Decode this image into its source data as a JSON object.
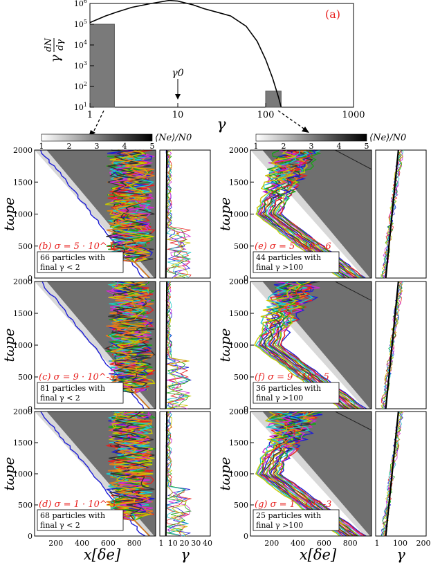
{
  "colors": {
    "accent_red": "#e8201e",
    "curve": "#000000",
    "band_dark": "#4d4d4d",
    "track_colors": [
      "#1d1dd6",
      "#e8201e",
      "#19a319",
      "#d12ad1",
      "#21c8c8",
      "#c8c800",
      "#333333",
      "#e87a1a"
    ]
  },
  "chart_data": [
    {
      "type": "line",
      "panel": "(a)",
      "xscale": "log",
      "yscale": "log",
      "xlim": [
        1,
        1000
      ],
      "ylim": [
        10,
        1000000
      ],
      "xlabel": "γ",
      "ylabel": "γ dN/dγ",
      "xticks": [
        "1",
        "10",
        "100",
        "1000"
      ],
      "yticks": [
        "10^1",
        "10^2",
        "10^3",
        "10^4",
        "10^5",
        "10^6"
      ],
      "annotation": "γ0",
      "annotation_x": 9,
      "series": [
        {
          "x": [
            1,
            1.5,
            2,
            3,
            5,
            8,
            10,
            15,
            20,
            30,
            40,
            60,
            80,
            100,
            120,
            140,
            150
          ],
          "y": [
            120000,
            250000,
            380000,
            650000,
            1000000,
            1400000,
            1300000,
            850000,
            560000,
            350000,
            250000,
            80000,
            15000,
            2000,
            250,
            30,
            10
          ]
        }
      ],
      "shaded_bins": [
        {
          "xrange": [
            1,
            1.9
          ],
          "top": 100000
        },
        {
          "xrange": [
            100,
            150
          ],
          "top": 60
        }
      ]
    },
    {
      "type": "heatmap",
      "panel": "(b)",
      "title": "σ = 5 · 10^-6",
      "note_line1": "66 particles with",
      "note_line2": "final γ < 2",
      "xlabel": "x[δe]",
      "ylabel": "tωpe",
      "xticks": [
        "200",
        "400",
        "600",
        "800"
      ],
      "yticks": [
        "0",
        "500",
        "1000",
        "1500",
        "2000"
      ],
      "colorbar": {
        "label": "⟨Ne⟩/N0",
        "ticks": [
          "1",
          "2",
          "3",
          "4",
          "5"
        ],
        "range": [
          1,
          5
        ]
      },
      "side_xticks": [
        "1",
        "10",
        "20",
        "30",
        "40"
      ],
      "side_xlabel": "γ"
    },
    {
      "type": "heatmap",
      "panel": "(c)",
      "title": "σ = 9 · 10^-5",
      "note_line1": "81 particles with",
      "note_line2": "final γ < 2",
      "xlabel": "x[δe]",
      "ylabel": "tωpe",
      "xticks": [
        "200",
        "400",
        "600",
        "800"
      ],
      "yticks": [
        "0",
        "500",
        "1000",
        "1500",
        "2000"
      ]
    },
    {
      "type": "heatmap",
      "panel": "(d)",
      "title": "σ = 1 · 10^-3",
      "note_line1": "68 particles with",
      "note_line2": "final γ < 2",
      "xlabel": "x[δe]",
      "ylabel": "tωpe",
      "xticks": [
        "200",
        "400",
        "600",
        "800"
      ],
      "yticks": [
        "0",
        "500",
        "1000",
        "1500",
        "2000"
      ],
      "side_xticks": [
        "1",
        "10",
        "20",
        "30",
        "40"
      ],
      "side_xlabel": "γ"
    },
    {
      "type": "heatmap",
      "panel": "(e)",
      "title": "σ = 5 · 10^-6",
      "note_line1": "44 particles with",
      "note_line2": "final γ >100",
      "xlabel": "x[δe]",
      "ylabel": "tωpe",
      "xticks": [
        "200",
        "400",
        "600",
        "800"
      ],
      "yticks": [
        "0",
        "500",
        "1000",
        "1500",
        "2000"
      ],
      "colorbar": {
        "label": "⟨Ne⟩/N0",
        "ticks": [
          "1",
          "2",
          "3",
          "4",
          "5"
        ],
        "range": [
          1,
          5
        ]
      },
      "side_xticks": [
        "1",
        "100",
        "200"
      ],
      "side_xlabel": "γ"
    },
    {
      "type": "heatmap",
      "panel": "(f)",
      "title": "σ = 9 · 10^-5",
      "note_line1": "36 particles with",
      "note_line2": "final γ >100",
      "xlabel": "x[δe]",
      "ylabel": "tωpe",
      "xticks": [
        "200",
        "400",
        "600",
        "800"
      ],
      "yticks": [
        "0",
        "500",
        "1000",
        "1500",
        "2000"
      ]
    },
    {
      "type": "heatmap",
      "panel": "(g)",
      "title": "σ = 1 · 10^-3",
      "note_line1": "25 particles with",
      "note_line2": "final γ >100",
      "xlabel": "x[δe]",
      "ylabel": "tωpe",
      "xticks": [
        "200",
        "400",
        "600",
        "800"
      ],
      "yticks": [
        "0",
        "500",
        "1000",
        "1500",
        "2000"
      ],
      "side_xticks": [
        "1",
        "100",
        "200"
      ],
      "side_xlabel": "γ"
    }
  ]
}
